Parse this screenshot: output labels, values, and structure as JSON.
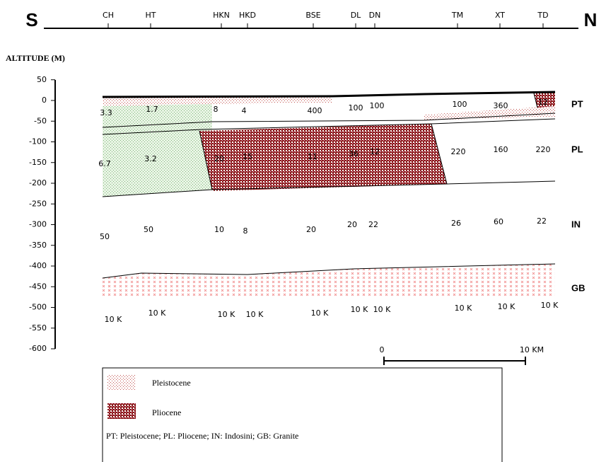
{
  "header": {
    "south": "S",
    "north": "N",
    "stations": [
      "CH",
      "HT",
      "HKN",
      "HKD",
      "BSE",
      "DL",
      "DN",
      "TM",
      "XT",
      "TD"
    ]
  },
  "axis": {
    "label": "ALTITUDE (M)",
    "ticks": [
      50,
      0,
      -50,
      -100,
      -150,
      -200,
      -250,
      -300,
      -350,
      -400,
      -450,
      -500,
      -550,
      -600
    ]
  },
  "layers": [
    {
      "label": "PT",
      "values": [
        "3.3",
        "1.7",
        "8",
        "4",
        "400",
        "100",
        "100",
        "100",
        "360",
        "12"
      ]
    },
    {
      "label": "PL",
      "values": [
        "6.7",
        "3.2",
        "20",
        "15",
        "11",
        "36",
        "12",
        "220",
        "160",
        "220"
      ]
    },
    {
      "label": "IN",
      "values": [
        "50",
        "50",
        "10",
        "8",
        "20",
        "20",
        "22",
        "26",
        "60",
        "22"
      ]
    },
    {
      "label": "GB",
      "values": [
        "10 K",
        "10 K",
        "10 K",
        "10 K",
        "10 K",
        "10 K",
        "10 K",
        "10 K",
        "10 K",
        "10 K"
      ]
    }
  ],
  "scale": {
    "start": "0",
    "end": "10 KM"
  },
  "legend": {
    "items": [
      "Pleistocene",
      "Pliocene"
    ],
    "note": "PT: Pleistocene; PL: Pliocene; IN: Indosini; GB: Granite"
  }
}
